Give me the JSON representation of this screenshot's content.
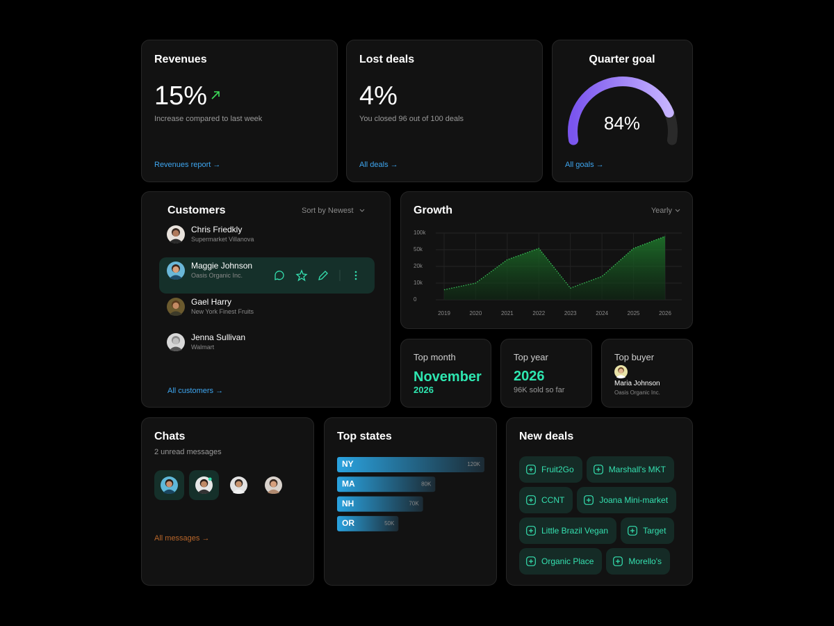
{
  "revenues": {
    "title": "Revenues",
    "value": "15%",
    "caption": "Increase compared to last week",
    "link": "Revenues report →"
  },
  "lost_deals": {
    "title": "Lost deals",
    "value": "4%",
    "caption": "You closed 96 out of 100 deals",
    "link": "All deals →"
  },
  "quarter_goal": {
    "link": "All goals →"
  },
  "customers": {
    "title": "Customers",
    "sort": "Sort by Newest",
    "items": [
      {
        "name": "Chris Friedkly",
        "company": "Supermarket Villanova"
      },
      {
        "name": "Maggie Johnson",
        "company": "Oasis Organic Inc."
      },
      {
        "name": "Gael Harry",
        "company": "New York Finest Fruits"
      },
      {
        "name": "Jenna Sullivan",
        "company": "Walmart"
      }
    ],
    "link": "All customers →"
  },
  "growth": {
    "control": "Yearly"
  },
  "top_month": {
    "title": "Top month",
    "value": "November",
    "sub": "2026"
  },
  "top_year": {
    "title": "Top year",
    "value": "2026",
    "sub": "96K sold so far"
  },
  "top_buyer": {
    "title": "Top buyer",
    "name": "Maria Johnson",
    "company": "Oasis Organic Inc."
  },
  "chats": {
    "title": "Chats",
    "subtitle": "2 unread messages",
    "link": "All messages →"
  },
  "new_deals": {
    "title": "New deals",
    "items": [
      "Fruit2Go",
      "Marshall's MKT",
      "CCNT",
      "Joana Mini-market",
      "Little Brazil Vegan",
      "Target",
      "Organic Place",
      "Morello's"
    ]
  },
  "chart_data": [
    {
      "type": "gauge",
      "title": "Quarter goal",
      "values": [
        84
      ],
      "value_labels": [
        "84%"
      ],
      "ylim": [
        0,
        100
      ],
      "color": "#9b7cf8"
    },
    {
      "type": "line",
      "title": "Growth",
      "categories": [
        "2019",
        "2020",
        "2021",
        "2022",
        "2023",
        "2024",
        "2025",
        "2026"
      ],
      "values": [
        6000,
        10000,
        32000,
        54000,
        7000,
        14000,
        54000,
        90000
      ],
      "color": "#3ac25a",
      "ylim": [
        0,
        100000
      ],
      "yticks": [
        0,
        {
          "value": 10000,
          "label": "10k"
        },
        {
          "value": 20000,
          "label": "20k"
        },
        {
          "value": 50000,
          "label": "50k"
        },
        {
          "value": 100000,
          "label": "100k"
        }
      ],
      "grid": true
    },
    {
      "type": "hbar",
      "title": "Top states",
      "categories": [
        "NY",
        "MA",
        "NH",
        "OR"
      ],
      "values": [
        120000,
        80000,
        70000,
        50000
      ],
      "value_labels": [
        "120K",
        "80K",
        "70K",
        "50K"
      ],
      "color": "#2aa3e0"
    }
  ]
}
